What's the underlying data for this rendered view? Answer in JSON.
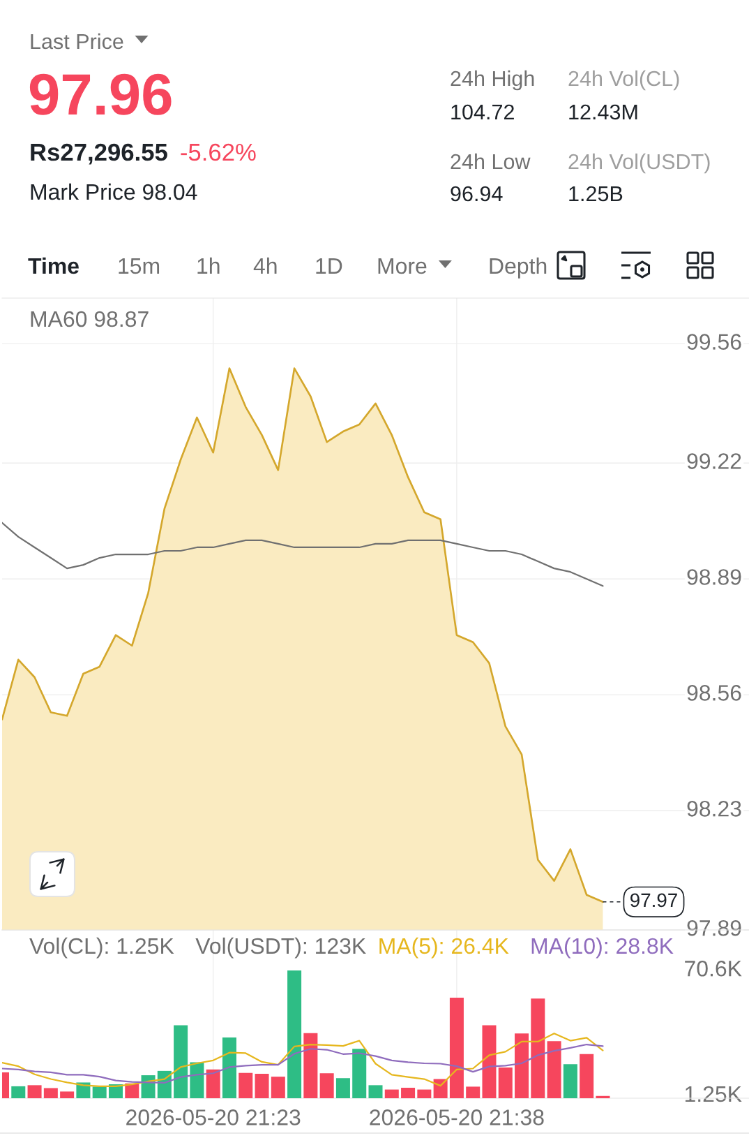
{
  "chart_data": [
    {
      "type": "other",
      "annotations": [
        "Last Price",
        "97.96",
        "Rs27,296.55",
        "-5.62%",
        "Mark Price 98.04",
        "24h High",
        "104.72",
        "24h Vol(CL)",
        "12.43M",
        "24h Low",
        "96.94",
        "24h Vol(USDT)",
        "1.25B",
        "Time",
        "15m",
        "1h",
        "4h",
        "1D",
        "More",
        "Depth"
      ]
    },
    {
      "type": "area",
      "x": [
        "2026-05-20T21:10",
        "2026-05-20T21:11",
        "2026-05-20T21:12",
        "2026-05-20T21:13",
        "2026-05-20T21:14",
        "2026-05-20T21:15",
        "2026-05-20T21:16",
        "2026-05-20T21:17",
        "2026-05-20T21:18",
        "2026-05-20T21:19",
        "2026-05-20T21:20",
        "2026-05-20T21:21",
        "2026-05-20T21:22",
        "2026-05-20T21:23",
        "2026-05-20T21:24",
        "2026-05-20T21:25",
        "2026-05-20T21:26",
        "2026-05-20T21:27",
        "2026-05-20T21:28",
        "2026-05-20T21:29",
        "2026-05-20T21:30",
        "2026-05-20T21:31",
        "2026-05-20T21:32",
        "2026-05-20T21:33",
        "2026-05-20T21:34",
        "2026-05-20T21:35",
        "2026-05-20T21:36",
        "2026-05-20T21:37",
        "2026-05-20T21:38",
        "2026-05-20T21:39",
        "2026-05-20T21:40",
        "2026-05-20T21:41",
        "2026-05-20T21:42",
        "2026-05-20T21:43",
        "2026-05-20T21:44",
        "2026-05-20T21:45",
        "2026-05-20T21:46",
        "2026-05-20T21:47"
      ],
      "series": [
        {
          "type": "area",
          "color": "#d4a72c",
          "values": [
            98.49,
            98.66,
            98.61,
            98.51,
            98.5,
            98.62,
            98.64,
            98.73,
            98.7,
            98.85,
            99.09,
            99.23,
            99.35,
            99.25,
            99.49,
            99.38,
            99.3,
            99.2,
            99.49,
            99.41,
            99.28,
            99.31,
            99.33,
            99.39,
            99.3,
            99.18,
            99.08,
            99.06,
            98.73,
            98.71,
            98.65,
            98.47,
            98.39,
            98.09,
            98.03,
            98.12,
            97.99,
            97.97
          ]
        },
        {
          "type": "line",
          "name": "MA60 98.87",
          "color": "#707070",
          "values": [
            99.05,
            99.01,
            98.98,
            98.95,
            98.92,
            98.93,
            98.95,
            98.96,
            98.96,
            98.96,
            98.97,
            98.97,
            98.98,
            98.98,
            98.99,
            99.0,
            99.0,
            98.99,
            98.98,
            98.98,
            98.98,
            98.98,
            98.98,
            98.99,
            98.99,
            99.0,
            99.0,
            99.0,
            98.99,
            98.98,
            98.97,
            98.97,
            98.96,
            98.94,
            98.92,
            98.91,
            98.89,
            98.87
          ]
        }
      ],
      "xlim": [
        "2026-05-20T21:10",
        "2026-05-20T21:56"
      ],
      "xticks": [
        {
          "value": "2026-05-20T21:23",
          "label": null
        },
        {
          "value": "2026-05-20T21:38",
          "label": null
        }
      ],
      "ylim": [
        97.89,
        99.69
      ],
      "yticks": [
        99.56,
        99.22,
        98.89,
        98.56,
        98.23,
        97.89
      ],
      "tick_labels": "y",
      "grid": true,
      "legend": "top left",
      "ref_lines": [
        {
          "axis": "y",
          "value": 97.97,
          "label": "97.97",
          "line_style": "dashed",
          "color": "#1e2329"
        }
      ]
    },
    {
      "type": "bar",
      "x": [
        "2026-05-20T21:10",
        "2026-05-20T21:11",
        "2026-05-20T21:12",
        "2026-05-20T21:13",
        "2026-05-20T21:14",
        "2026-05-20T21:15",
        "2026-05-20T21:16",
        "2026-05-20T21:17",
        "2026-05-20T21:18",
        "2026-05-20T21:19",
        "2026-05-20T21:20",
        "2026-05-20T21:21",
        "2026-05-20T21:22",
        "2026-05-20T21:23",
        "2026-05-20T21:24",
        "2026-05-20T21:25",
        "2026-05-20T21:26",
        "2026-05-20T21:27",
        "2026-05-20T21:28",
        "2026-05-20T21:29",
        "2026-05-20T21:30",
        "2026-05-20T21:31",
        "2026-05-20T21:32",
        "2026-05-20T21:33",
        "2026-05-20T21:34",
        "2026-05-20T21:35",
        "2026-05-20T21:36",
        "2026-05-20T21:37",
        "2026-05-20T21:38",
        "2026-05-20T21:39",
        "2026-05-20T21:40",
        "2026-05-20T21:41",
        "2026-05-20T21:42",
        "2026-05-20T21:43",
        "2026-05-20T21:44",
        "2026-05-20T21:45",
        "2026-05-20T21:46",
        "2026-05-20T21:47"
      ],
      "series": [
        {
          "type": "bar",
          "colors": [
            "#f6465d",
            "#2ebd85",
            "#f6465d",
            "#f6465d",
            "#f6465d",
            "#2ebd85",
            "#2ebd85",
            "#2ebd85",
            "#f6465d",
            "#2ebd85",
            "#2ebd85",
            "#2ebd85",
            "#2ebd85",
            "#f6465d",
            "#2ebd85",
            "#f6465d",
            "#f6465d",
            "#f6465d",
            "#2ebd85",
            "#f6465d",
            "#f6465d",
            "#2ebd85",
            "#2ebd85",
            "#2ebd85",
            "#f6465d",
            "#f6465d",
            "#f6465d",
            "#f6465d",
            "#f6465d",
            "#f6465d",
            "#f6465d",
            "#f6465d",
            "#f6465d",
            "#f6465d",
            "#f6465d",
            "#2ebd85",
            "#f6465d",
            "#f6465d"
          ],
          "values": [
            14300,
            6600,
            7200,
            5600,
            3700,
            8700,
            6400,
            7700,
            8200,
            12700,
            15100,
            40300,
            19900,
            15900,
            33600,
            14000,
            13500,
            11900,
            70600,
            36000,
            13800,
            11100,
            27300,
            7200,
            4800,
            5800,
            4800,
            10600,
            55600,
            6400,
            40300,
            17000,
            35800,
            55100,
            31500,
            18800,
            24400,
            1250
          ]
        },
        {
          "type": "line",
          "name": "MA(5): 26.4K",
          "color": "#e6b71e",
          "values": [
            19600,
            17700,
            13200,
            10600,
            8700,
            7200,
            6600,
            6600,
            7700,
            9300,
            10600,
            17200,
            19300,
            20900,
            25200,
            24900,
            20100,
            18500,
            28600,
            29700,
            29400,
            28900,
            31800,
            19100,
            13000,
            11700,
            10600,
            6900,
            15900,
            16400,
            23800,
            25700,
            31300,
            31300,
            35800,
            31800,
            33400,
            26400
          ]
        },
        {
          "type": "line",
          "name": "MA(10): 28.8K",
          "color": "#8f6cbd",
          "values": [
            16400,
            15900,
            14800,
            14300,
            13000,
            13000,
            11900,
            9800,
            9000,
            8700,
            8500,
            11700,
            13000,
            13800,
            17200,
            18000,
            18500,
            18500,
            24600,
            27300,
            26800,
            24400,
            24900,
            23300,
            20900,
            19900,
            19300,
            19100,
            17700,
            14600,
            17500,
            18000,
            19300,
            23800,
            26200,
            27800,
            29700,
            28800
          ]
        }
      ],
      "annotations": [
        "Vol(CL): 1.25K",
        "Vol(USDT): 123K"
      ],
      "xlim": [
        "2026-05-20T21:10",
        "2026-05-20T21:56"
      ],
      "xticks": [
        {
          "value": "2026-05-20T21:23",
          "label": "2026-05-20 21:23"
        },
        {
          "value": "2026-05-20T21:38",
          "label": "2026-05-20 21:38"
        }
      ],
      "ylim": [
        0,
        93000
      ],
      "yticks": [
        {
          "value": 70600,
          "label": "70.6K"
        },
        {
          "value": 1250,
          "label": "1.25K"
        }
      ],
      "grid": "x",
      "legend": "top right"
    }
  ]
}
